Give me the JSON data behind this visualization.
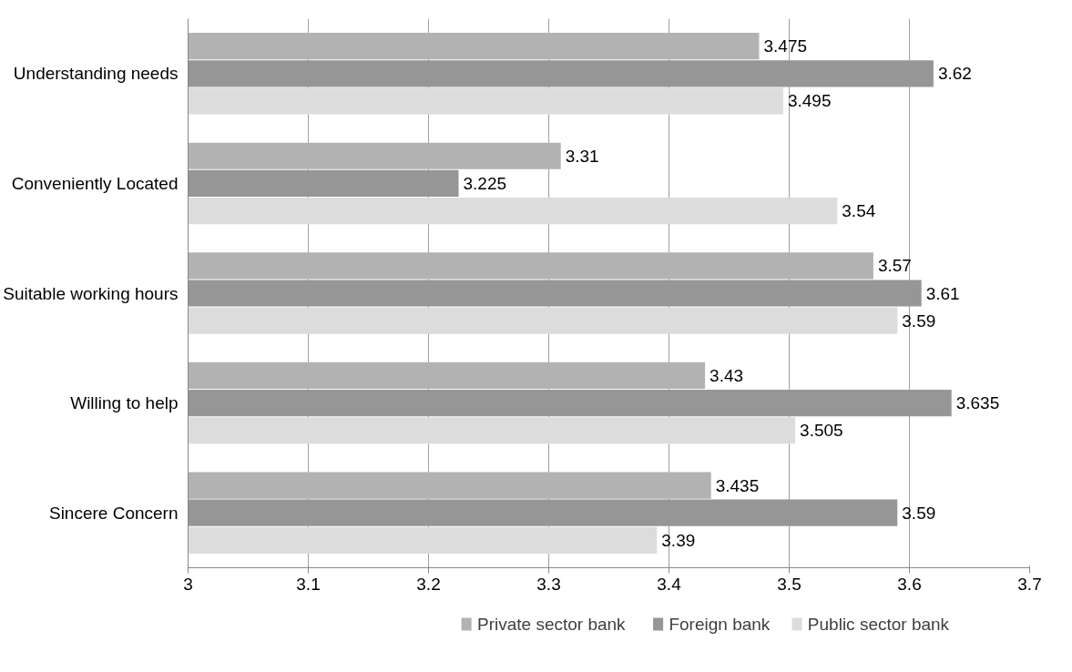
{
  "chart_data": {
    "type": "bar",
    "orientation": "horizontal",
    "categories": [
      "Understanding needs",
      "Conveniently Located",
      "Suitable working hours",
      "Willing to help",
      "Sincere Concern"
    ],
    "series": [
      {
        "name": "Private sector bank",
        "color": "#b2b2b2",
        "values": [
          3.475,
          3.31,
          3.57,
          3.43,
          3.435
        ]
      },
      {
        "name": "Foreign bank",
        "color": "#969696",
        "values": [
          3.62,
          3.225,
          3.61,
          3.635,
          3.59
        ]
      },
      {
        "name": "Public sector bank",
        "color": "#dcdcdc",
        "values": [
          3.495,
          3.54,
          3.59,
          3.505,
          3.39
        ]
      }
    ],
    "xlim": [
      3,
      3.7
    ],
    "xticks": [
      3,
      3.1,
      3.2,
      3.3,
      3.4,
      3.5,
      3.6,
      3.7
    ],
    "grid": "x",
    "legend": "bottom",
    "data_labels": true
  }
}
